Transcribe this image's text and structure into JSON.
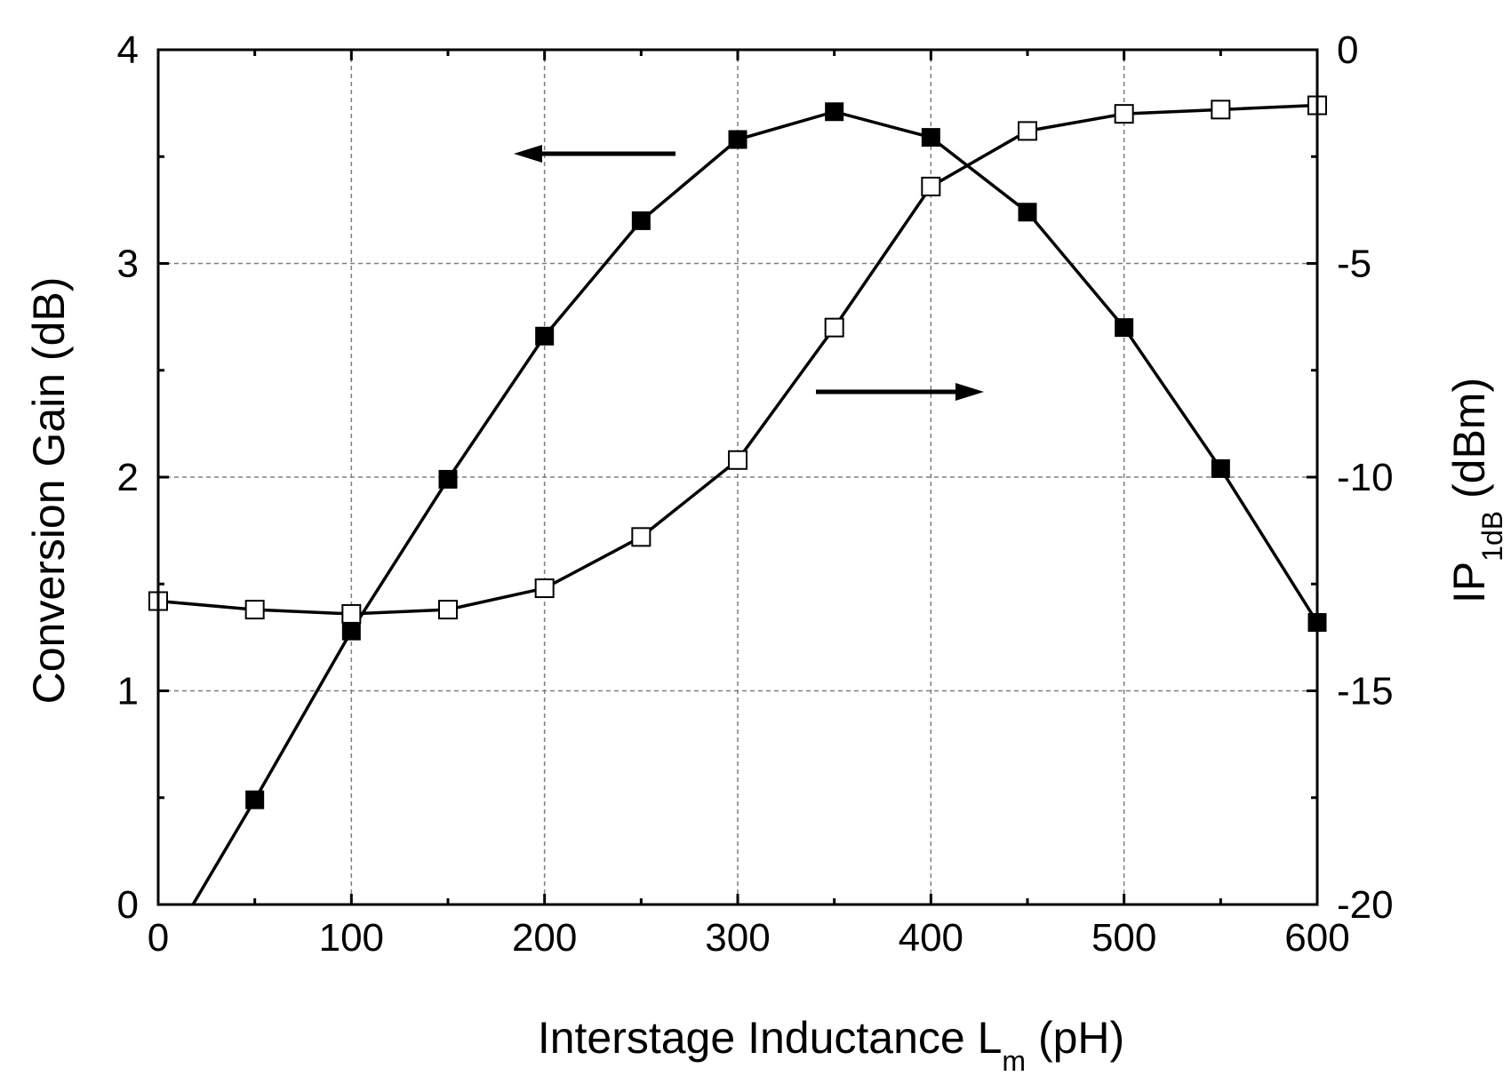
{
  "chart_data": {
    "type": "line",
    "title": "",
    "x": [
      0,
      50,
      100,
      150,
      200,
      250,
      300,
      350,
      400,
      450,
      500,
      550,
      600
    ],
    "xlim": [
      0,
      600
    ],
    "ylim": [
      0,
      4
    ],
    "y2lim": [
      -20,
      0
    ],
    "xticks": [
      "0",
      "100",
      "200",
      "300",
      "400",
      "500",
      "600"
    ],
    "xtick_values": [
      0,
      100,
      200,
      300,
      400,
      500,
      600
    ],
    "yticks": [
      "0",
      "1",
      "2",
      "3",
      "4"
    ],
    "ytick_values": [
      0,
      1,
      2,
      3,
      4
    ],
    "y2ticks": [
      "0",
      "-5",
      "-10",
      "-15",
      "-20"
    ],
    "y2tick_values": [
      0,
      -5,
      -10,
      -15,
      -20
    ],
    "xlabel": {
      "main": "Interstage Inductance L",
      "sub": "m",
      "unit": " (pH)"
    },
    "ylabel": "Conversion Gain (dB)",
    "y2label": {
      "main": "IP",
      "sub": "1dB",
      "unit": " (dBm)"
    },
    "grid": true,
    "series": [
      {
        "name": "Conversion Gain",
        "axis": "left",
        "marker": "filled-square",
        "color": "#000000",
        "line_start": [
          18,
          0
        ],
        "values": [
          null,
          0.49,
          1.28,
          1.99,
          2.66,
          3.2,
          3.58,
          3.71,
          3.59,
          3.24,
          2.7,
          2.04,
          1.32
        ]
      },
      {
        "name": "IP1dB",
        "axis": "right",
        "marker": "open-square",
        "color": "#000000",
        "values": [
          -12.9,
          -13.1,
          -13.2,
          -13.1,
          -12.6,
          -11.4,
          -9.6,
          -6.5,
          -3.2,
          -1.9,
          -1.5,
          -1.4,
          -1.3
        ]
      }
    ],
    "annotations": [
      {
        "label": "arrow-left",
        "points_to": "left axis"
      },
      {
        "label": "arrow-right",
        "points_to": "right axis"
      }
    ]
  }
}
